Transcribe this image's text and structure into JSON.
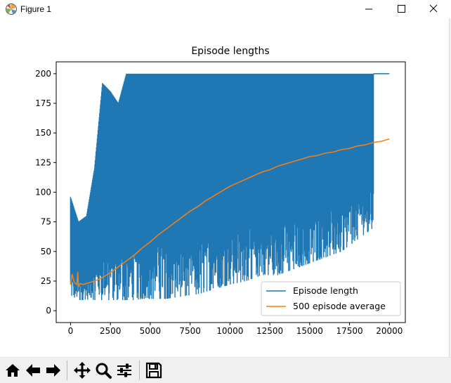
{
  "window": {
    "title": "Figure 1",
    "controls": [
      "minimize",
      "maximize",
      "close"
    ]
  },
  "toolbar": {
    "buttons": [
      "home-icon",
      "back-arrow-icon",
      "forward-arrow-icon",
      "pan-icon",
      "zoom-icon",
      "configure-subplots-icon",
      "save-icon"
    ]
  },
  "chart_data": {
    "type": "line",
    "title": "Episode lengths",
    "xlabel": "",
    "ylabel": "",
    "xlim": [
      -900,
      21000
    ],
    "ylim": [
      -10,
      210
    ],
    "xticks": [
      0,
      2500,
      5000,
      7500,
      10000,
      12500,
      15000,
      17500,
      20000
    ],
    "yticks": [
      0,
      25,
      50,
      75,
      100,
      125,
      150,
      175,
      200
    ],
    "xtick_labels": [
      "0",
      "2500",
      "5000",
      "7500",
      "10000",
      "12500",
      "15000",
      "17500",
      "20000"
    ],
    "ytick_labels": [
      "0",
      "25",
      "50",
      "75",
      "100",
      "125",
      "150",
      "175",
      "200"
    ],
    "legend_position": "lower-right",
    "grid": false,
    "series": [
      {
        "name": "Episode length",
        "color": "#1f77b4",
        "x": [
          0,
          500,
          1000,
          1500,
          2000,
          2500,
          3000,
          3500,
          4000,
          4500,
          5000,
          6000,
          7000,
          8000,
          9000,
          10000,
          11000,
          12000,
          13000,
          14000,
          15000,
          16000,
          17000,
          18000,
          19000,
          20000
        ],
        "min": [
          9,
          9,
          9,
          9,
          9,
          9,
          9,
          9,
          9,
          10,
          10,
          10,
          12,
          14,
          18,
          22,
          25,
          30,
          30,
          35,
          40,
          45,
          50,
          60,
          70,
          200
        ],
        "max": [
          96,
          75,
          80,
          120,
          192,
          185,
          175,
          200,
          200,
          200,
          200,
          200,
          200,
          200,
          200,
          200,
          200,
          200,
          200,
          200,
          200,
          200,
          200,
          200,
          200,
          200
        ]
      },
      {
        "name": "500 episode average",
        "color": "#ff7f0e",
        "x": [
          0,
          100,
          200,
          300,
          400,
          450,
          500,
          600,
          800,
          1000,
          1500,
          2000,
          2500,
          3000,
          3500,
          4000,
          4500,
          5000,
          5500,
          6000,
          6500,
          7000,
          7500,
          8000,
          8500,
          9000,
          9500,
          10000,
          10500,
          11000,
          11500,
          12000,
          12500,
          13000,
          13500,
          14000,
          14500,
          15000,
          15500,
          16000,
          16500,
          17000,
          17500,
          18000,
          18500,
          19000,
          19500,
          20000
        ],
        "y": [
          22,
          31,
          25,
          23,
          22,
          33,
          20,
          23,
          22,
          23,
          25,
          28,
          32,
          37,
          42,
          47,
          53,
          58,
          64,
          69,
          74,
          79,
          84,
          88,
          93,
          97,
          101,
          105,
          108,
          111,
          114,
          117,
          119,
          122,
          124,
          126,
          128,
          130,
          131,
          133,
          134,
          136,
          137,
          139,
          140,
          142,
          143,
          145
        ]
      }
    ]
  }
}
